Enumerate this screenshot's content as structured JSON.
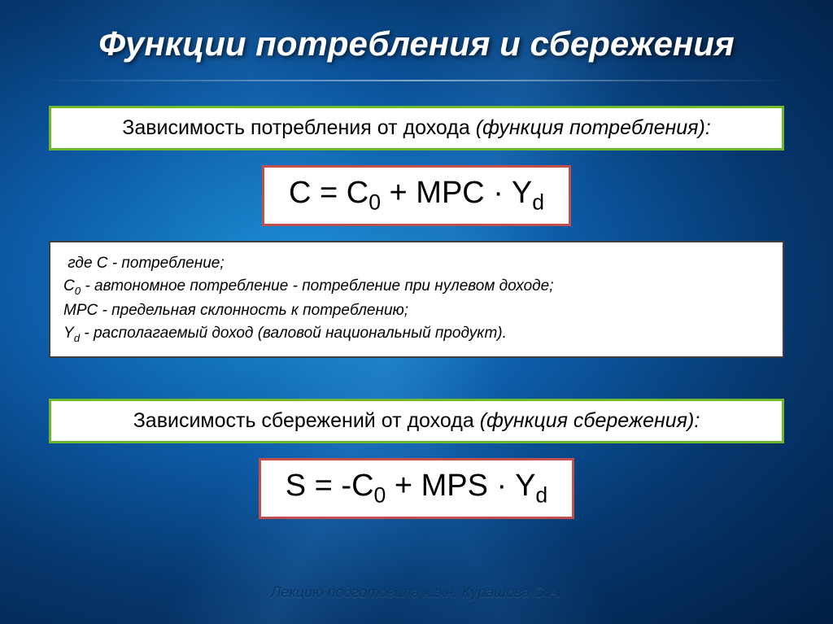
{
  "colors": {
    "green_border": "#6fb82e",
    "red_border": "#c0504d",
    "plain_border": "#404040"
  },
  "title": "Функции потребления и сбережения",
  "section1": {
    "heading_prefix": "Зависимость потребления от дохода ",
    "heading_italic": "(функция потребления):",
    "formula_html": "C = C<sub>0</sub> + MPC · Y<sub>d</sub>",
    "definitions_html": "&nbsp;где <i>C</i> - потребление;<br><i>C<sub>0</sub></i> - автономное потребление - потребление при нулевом доходе;<br><i>MPC</i> - предельная склонность к потреблению;<br><i>Y<sub>d</sub></i> - располагаемый доход (валовой национальный продукт)."
  },
  "section2": {
    "heading_prefix": "Зависимость сбережений от дохода ",
    "heading_italic": "(функция сбережения):",
    "formula_html": "S = -C<sub>0</sub> + MPS · Y<sub>d</sub>"
  },
  "footer": "Лекцию подготовила к.э.н. Курашова С.А."
}
